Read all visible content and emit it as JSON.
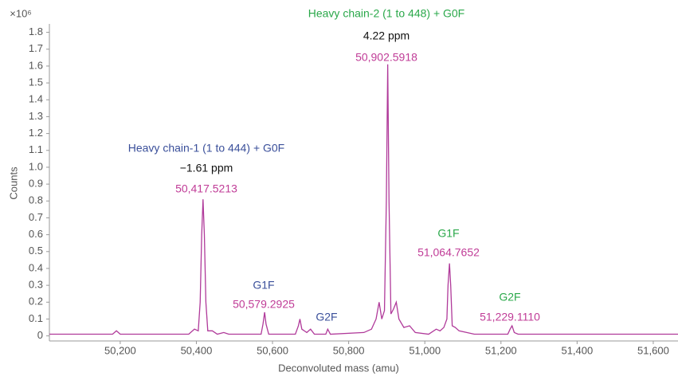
{
  "chart_data": {
    "type": "line",
    "y_multiplier": "×10⁶",
    "y_label": "Counts",
    "x_label": "Deconvoluted mass (amu)",
    "color": "#b03a9a",
    "xlim": [
      50014,
      51665
    ],
    "ylim": [
      -0.03,
      1.85
    ],
    "xticks": [
      {
        "value": 50200,
        "label": "50,200"
      },
      {
        "value": 50400,
        "label": "50,400"
      },
      {
        "value": 50600,
        "label": "50,600"
      },
      {
        "value": 50800,
        "label": "50,800"
      },
      {
        "value": 51000,
        "label": "51,000"
      },
      {
        "value": 51200,
        "label": "51,200"
      },
      {
        "value": 51400,
        "label": "51,400"
      },
      {
        "value": 51600,
        "label": "51,600"
      }
    ],
    "yticks": [
      0,
      0.1,
      0.2,
      0.3,
      0.4,
      0.5,
      0.6,
      0.7,
      0.8,
      0.9,
      {
        "value": 1,
        "label": "1.0"
      },
      1.1,
      1.2,
      1.3,
      1.4,
      1.5,
      1.6,
      1.7,
      1.8
    ],
    "x": [
      50014,
      50180,
      50190,
      50200,
      50380,
      50395,
      50405,
      50410,
      50414,
      50417.5,
      50421,
      50425,
      50430,
      50442,
      50455,
      50472,
      50485,
      50570,
      50575,
      50579.3,
      50583,
      50590,
      50660,
      50668,
      50672,
      50677,
      50690,
      50700,
      50710,
      50740,
      50745,
      50752,
      50840,
      50860,
      50872,
      50880,
      50887,
      50894,
      50899,
      50902.6,
      50906,
      50911,
      50918,
      50925,
      50932,
      50945,
      50960,
      50975,
      51010,
      51030,
      51040,
      51050,
      51058,
      51061,
      51064.8,
      51068,
      51072,
      51080,
      51090,
      51110,
      51130,
      51218,
      51224,
      51229.1,
      51235,
      51245,
      51665
    ],
    "values": [
      0.01,
      0.01,
      0.03,
      0.01,
      0.01,
      0.04,
      0.03,
      0.2,
      0.6,
      0.81,
      0.6,
      0.2,
      0.03,
      0.03,
      0.01,
      0.02,
      0.01,
      0.01,
      0.07,
      0.14,
      0.07,
      0.01,
      0.01,
      0.06,
      0.1,
      0.04,
      0.02,
      0.04,
      0.01,
      0.01,
      0.04,
      0.01,
      0.02,
      0.04,
      0.1,
      0.2,
      0.1,
      0.15,
      0.8,
      1.61,
      0.8,
      0.13,
      0.16,
      0.2,
      0.1,
      0.05,
      0.06,
      0.02,
      0.01,
      0.04,
      0.03,
      0.05,
      0.1,
      0.3,
      0.43,
      0.3,
      0.06,
      0.05,
      0.03,
      0.02,
      0.01,
      0.01,
      0.04,
      0.06,
      0.02,
      0.01,
      0.01
    ],
    "annotations": [
      {
        "text": "Heavy chain-2 (1 to 448) + G0F",
        "color": "#2aa84a"
      },
      {
        "text": "4.22 ppm",
        "color": "#111111"
      },
      {
        "text": "50,902.5918",
        "color": "#c03c97"
      },
      {
        "text": "Heavy chain-1 (1 to 444) + G0F",
        "color": "#3a4f9a"
      },
      {
        "text": "−1.61 ppm",
        "color": "#111111"
      },
      {
        "text": "50,417.5213",
        "color": "#c03c97"
      },
      {
        "text": "G1F",
        "color": "#3a4f9a"
      },
      {
        "text": "50,579.2925",
        "color": "#c03c97"
      },
      {
        "text": "G2F",
        "color": "#3a4f9a"
      },
      {
        "text": "G1F",
        "color": "#2aa84a"
      },
      {
        "text": "51,064.7652",
        "color": "#c03c97"
      },
      {
        "text": "G2F",
        "color": "#2aa84a"
      },
      {
        "text": "51,229.1110",
        "color": "#c03c97"
      }
    ]
  }
}
